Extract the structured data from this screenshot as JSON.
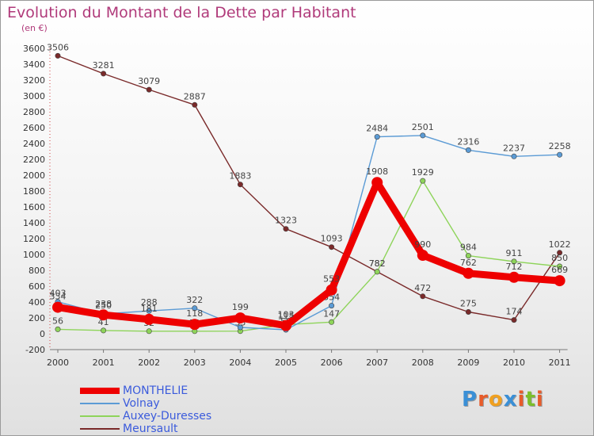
{
  "title": "Evolution du Montant de la Dette par Habitant",
  "unit": "(en €)",
  "brand": {
    "text": "Proxiti",
    "colors": [
      "#3a8fd6",
      "#e85c2a",
      "#f0a020",
      "#3a8fd6",
      "#e85c2a",
      "#7cbf2a",
      "#e85c2a"
    ]
  },
  "chart_data": {
    "type": "line",
    "x": [
      "2000",
      "2001",
      "2002",
      "2003",
      "2004",
      "2005",
      "2006",
      "2007",
      "2008",
      "2009",
      "2010",
      "2011"
    ],
    "ylim": [
      -200,
      3600
    ],
    "yticks": [
      "-200",
      "0",
      "200",
      "400",
      "600",
      "800",
      "1000",
      "1200",
      "1400",
      "1600",
      "1800",
      "2000",
      "2200",
      "2400",
      "2600",
      "2800",
      "3000",
      "3200",
      "3400",
      "3600"
    ],
    "grid": false,
    "legend_position": "bottom-left",
    "series": [
      {
        "name": "Meursault",
        "color": "#7a2a2a",
        "values": [
          3506,
          3281,
          3079,
          2887,
          1883,
          1323,
          1093,
          782,
          472,
          275,
          174,
          1022
        ],
        "labels": [
          "3506",
          "3281",
          "3079",
          "2887",
          "1883",
          "1323",
          "1093",
          "782",
          "472",
          "275",
          "174",
          "1022"
        ]
      },
      {
        "name": "Auxey-Duresses",
        "color": "#8ed45a",
        "values": [
          56,
          41,
          32,
          32,
          33,
          115,
          147,
          782,
          1929,
          984,
          911,
          850
        ],
        "labels": [
          "56",
          "41",
          "32",
          "32",
          "33",
          "115",
          "147",
          "782",
          "1929",
          "984",
          "911",
          "850"
        ]
      },
      {
        "name": "Volnay",
        "color": "#5b9bd5",
        "values": [
          403,
          250,
          288,
          322,
          80,
          50,
          354,
          2484,
          2501,
          2316,
          2237,
          2258
        ],
        "labels": [
          "403",
          "250",
          "288",
          "322",
          "80",
          "50",
          "354",
          "2484",
          "2501",
          "2316",
          "2237",
          "2258"
        ]
      },
      {
        "name": "MONTHELIE",
        "color": "#ee0000",
        "values": [
          334,
          238,
          181,
          118,
          199,
          103,
          553,
          1908,
          990,
          762,
          712,
          669
        ],
        "labels": [
          "334",
          "238",
          "181",
          "118",
          "199",
          "103",
          "553",
          "1908",
          "990",
          "762",
          "712",
          "669"
        ]
      }
    ],
    "legend_order": [
      "MONTHELIE",
      "Volnay",
      "Auxey-Duresses",
      "Meursault"
    ]
  }
}
